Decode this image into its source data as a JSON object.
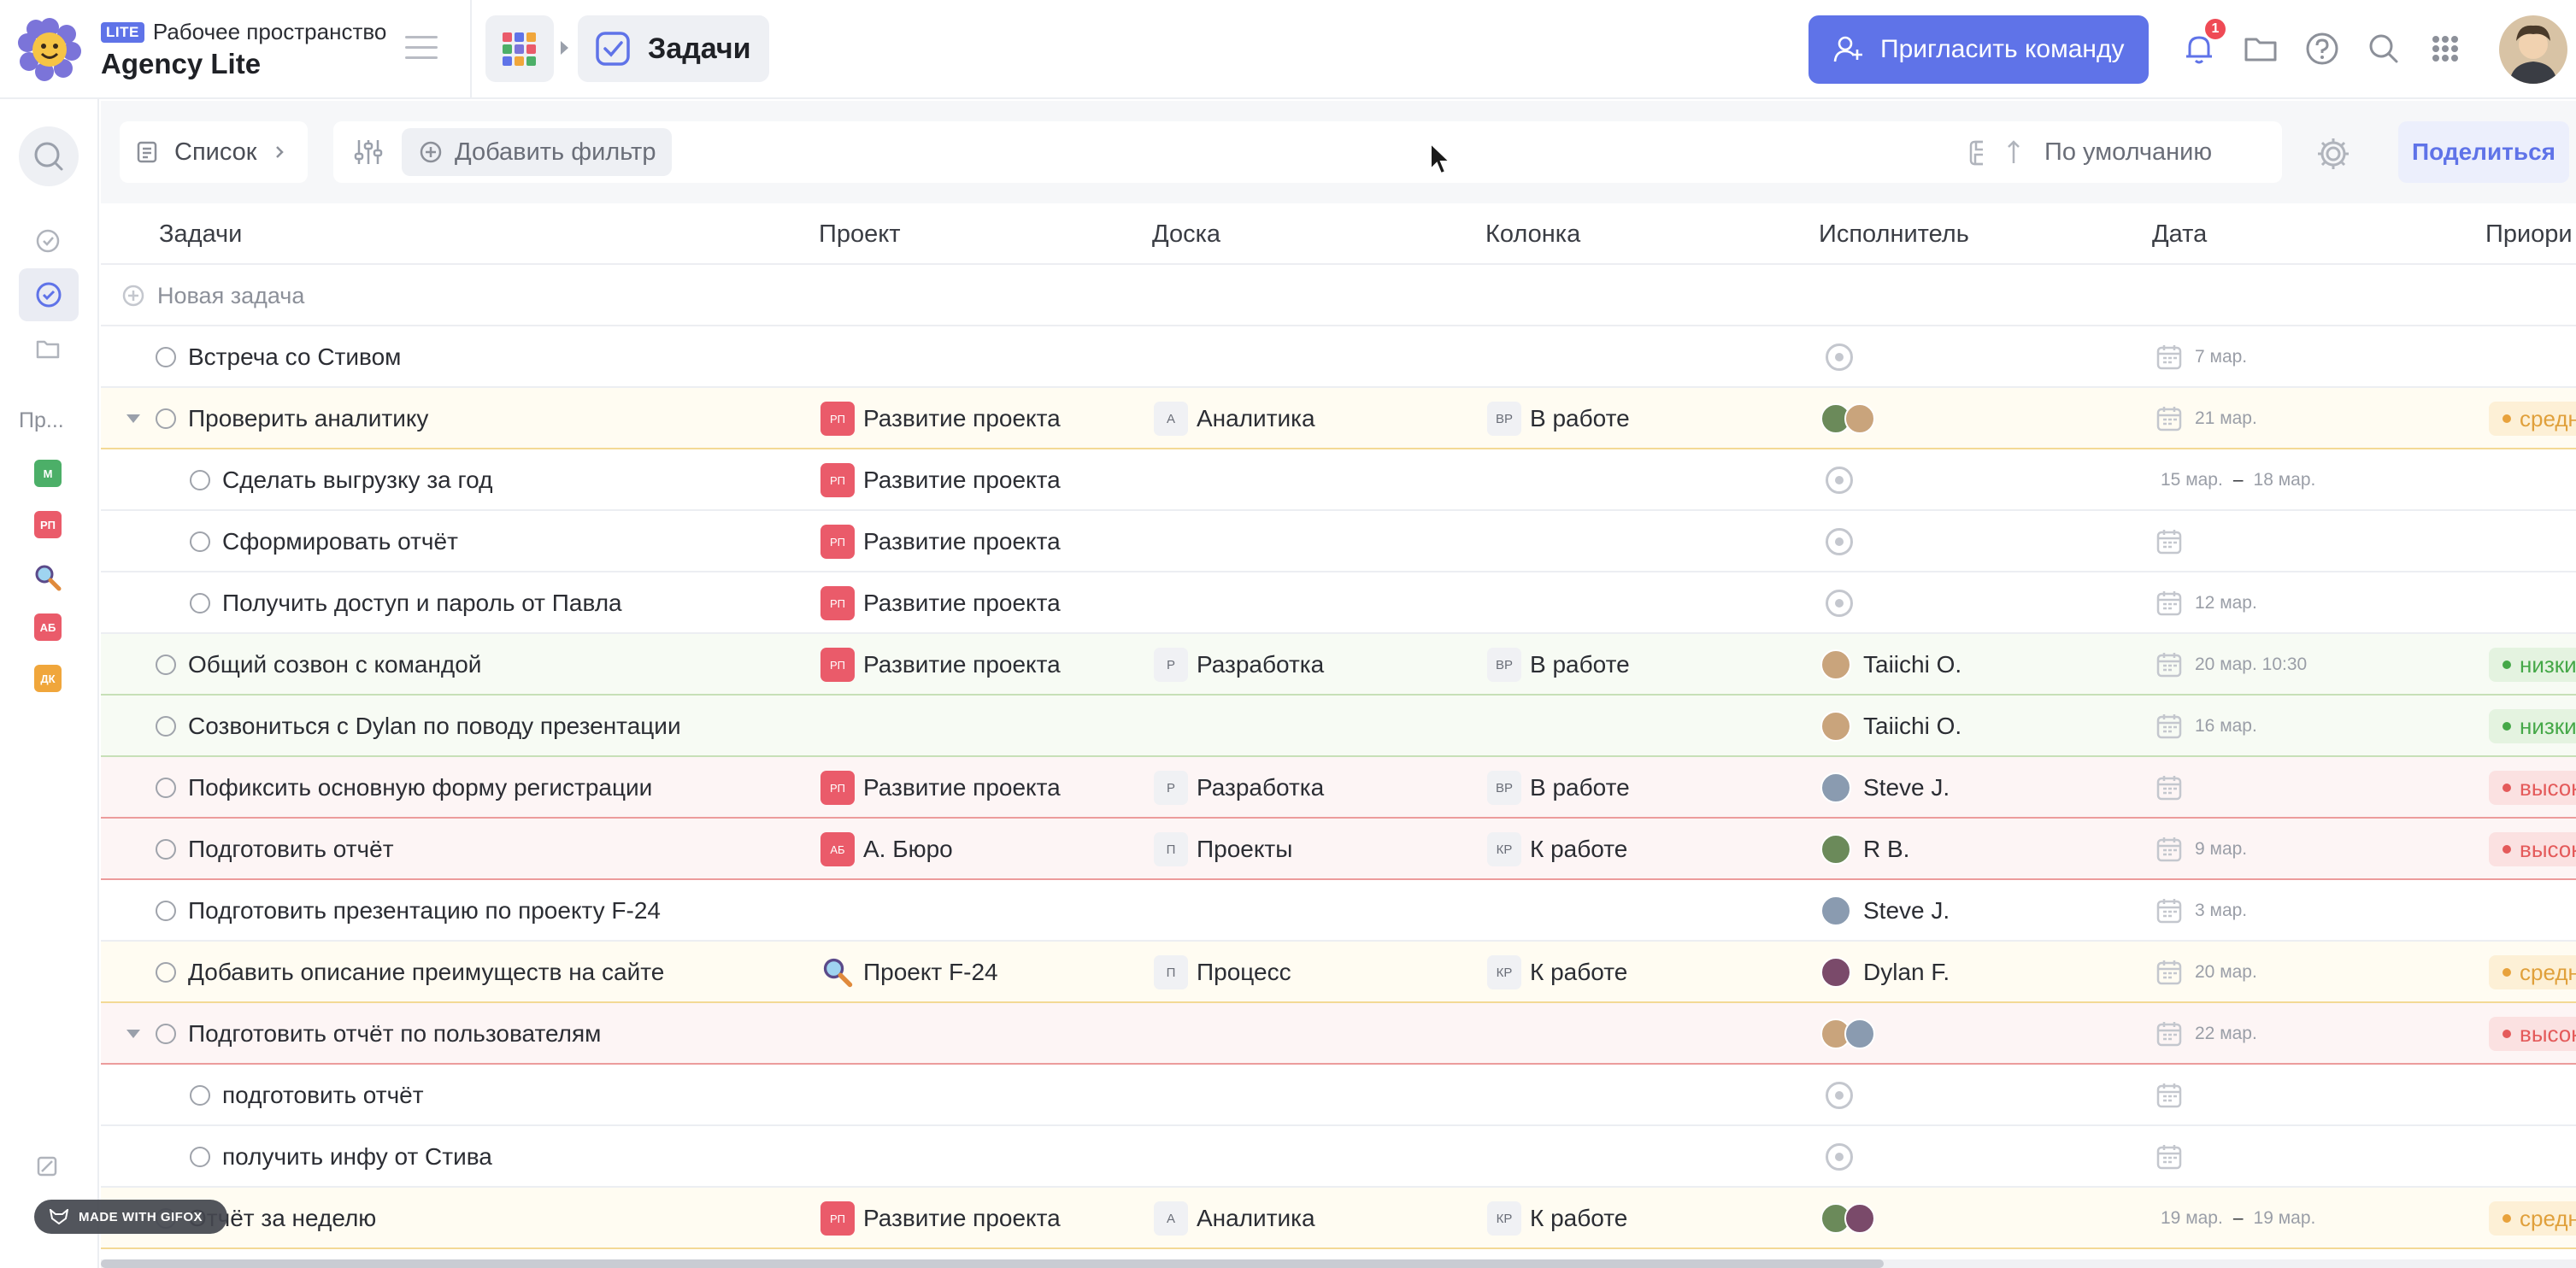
{
  "header": {
    "lite_badge": "LITE",
    "workspace_label": "Рабочее пространство",
    "workspace_name": "Agency Lite",
    "page_title": "Задачи",
    "invite_button": "Пригласить команду",
    "notification_count": "1"
  },
  "rail": {
    "section_label": "Пр...",
    "projects": [
      {
        "abbr": "М",
        "color": "#4caf68"
      },
      {
        "abbr": "РП",
        "color": "#ea5b6a"
      },
      {
        "abbr": "",
        "icon": "magnifier-emoji-icon"
      },
      {
        "abbr": "АБ",
        "color": "#ea5b6a"
      },
      {
        "abbr": "ДК",
        "color": "#f0a63b"
      }
    ]
  },
  "filterbar": {
    "view_label": "Список",
    "add_filter": "Добавить фильтр",
    "sort_label": "По умолчанию",
    "share_label": "Поделиться"
  },
  "table": {
    "columns": [
      "Задачи",
      "Проект",
      "Доска",
      "Колонка",
      "Исполнитель",
      "Дата",
      "Приори"
    ],
    "new_task": "Новая задача",
    "rows": [
      {
        "task": "Встреча со Стивом",
        "date": "7 мар."
      },
      {
        "task": "Проверить аналитику",
        "project": "Развитие проекта",
        "project_abbr": "РП",
        "board": "Аналитика",
        "board_abbr": "А",
        "column": "В работе",
        "column_abbr": "ВР",
        "date": "21 мар.",
        "priority": "средн"
      },
      {
        "task": "Сделать выгрузку за год",
        "project": "Развитие проекта",
        "project_abbr": "РП",
        "date_from": "15 мар.",
        "date_sep": "–",
        "date_to": "18 мар."
      },
      {
        "task": "Сформировать отчёт",
        "project": "Развитие проекта",
        "project_abbr": "РП"
      },
      {
        "task": "Получить доступ и пароль от Павла",
        "project": "Развитие проекта",
        "project_abbr": "РП",
        "date": "12 мар."
      },
      {
        "task": "Общий созвон с командой",
        "project": "Развитие проекта",
        "project_abbr": "РП",
        "board": "Разработка",
        "board_abbr": "Р",
        "column": "В работе",
        "column_abbr": "ВР",
        "assignee": "Taiichi O.",
        "date": "20 мар. 10:30",
        "priority": "низки"
      },
      {
        "task": "Созвониться с Dylan по поводу презентации",
        "assignee": "Taiichi O.",
        "date": "16 мар.",
        "priority": "низки"
      },
      {
        "task": "Пофиксить основную форму регистрации",
        "project": "Развитие проекта",
        "project_abbr": "РП",
        "board": "Разработка",
        "board_abbr": "Р",
        "column": "В работе",
        "column_abbr": "ВР",
        "assignee": "Steve J.",
        "priority": "высок"
      },
      {
        "task": "Подготовить отчёт",
        "project": "А. Бюро",
        "project_abbr": "АБ",
        "board": "Проекты",
        "board_abbr": "П",
        "column": "К работе",
        "column_abbr": "КР",
        "assignee": "R B.",
        "date": "9 мар.",
        "priority": "высок"
      },
      {
        "task": "Подготовить презентацию по проекту F-24",
        "assignee": "Steve J.",
        "date": "3 мар."
      },
      {
        "task": "Добавить описание преимуществ на сайте",
        "project": "Проект F-24",
        "board": "Процесс",
        "board_abbr": "П",
        "column": "К работе",
        "column_abbr": "КР",
        "assignee": "Dylan F.",
        "date": "20 мар.",
        "priority": "средн"
      },
      {
        "task": "Подготовить отчёт по пользователям",
        "date": "22 мар.",
        "priority": "высок"
      },
      {
        "task": "подготовить отчёт"
      },
      {
        "task": "получить инфу от Стива"
      },
      {
        "task": "Отчёт за неделю",
        "project": "Развитие проекта",
        "project_abbr": "РП",
        "board": "Аналитика",
        "board_abbr": "А",
        "column": "К работе",
        "column_abbr": "КР",
        "date_from": "19 мар.",
        "date_sep": "–",
        "date_to": "19 мар.",
        "priority": "средн"
      }
    ]
  },
  "watermark": "MADE WITH GIFOX",
  "colors": {
    "accent": "#5f73e8",
    "project_red": "#ea5b6a",
    "priority_medium": "#e8a23c",
    "priority_low": "#45a848",
    "priority_high": "#e45a5a"
  }
}
